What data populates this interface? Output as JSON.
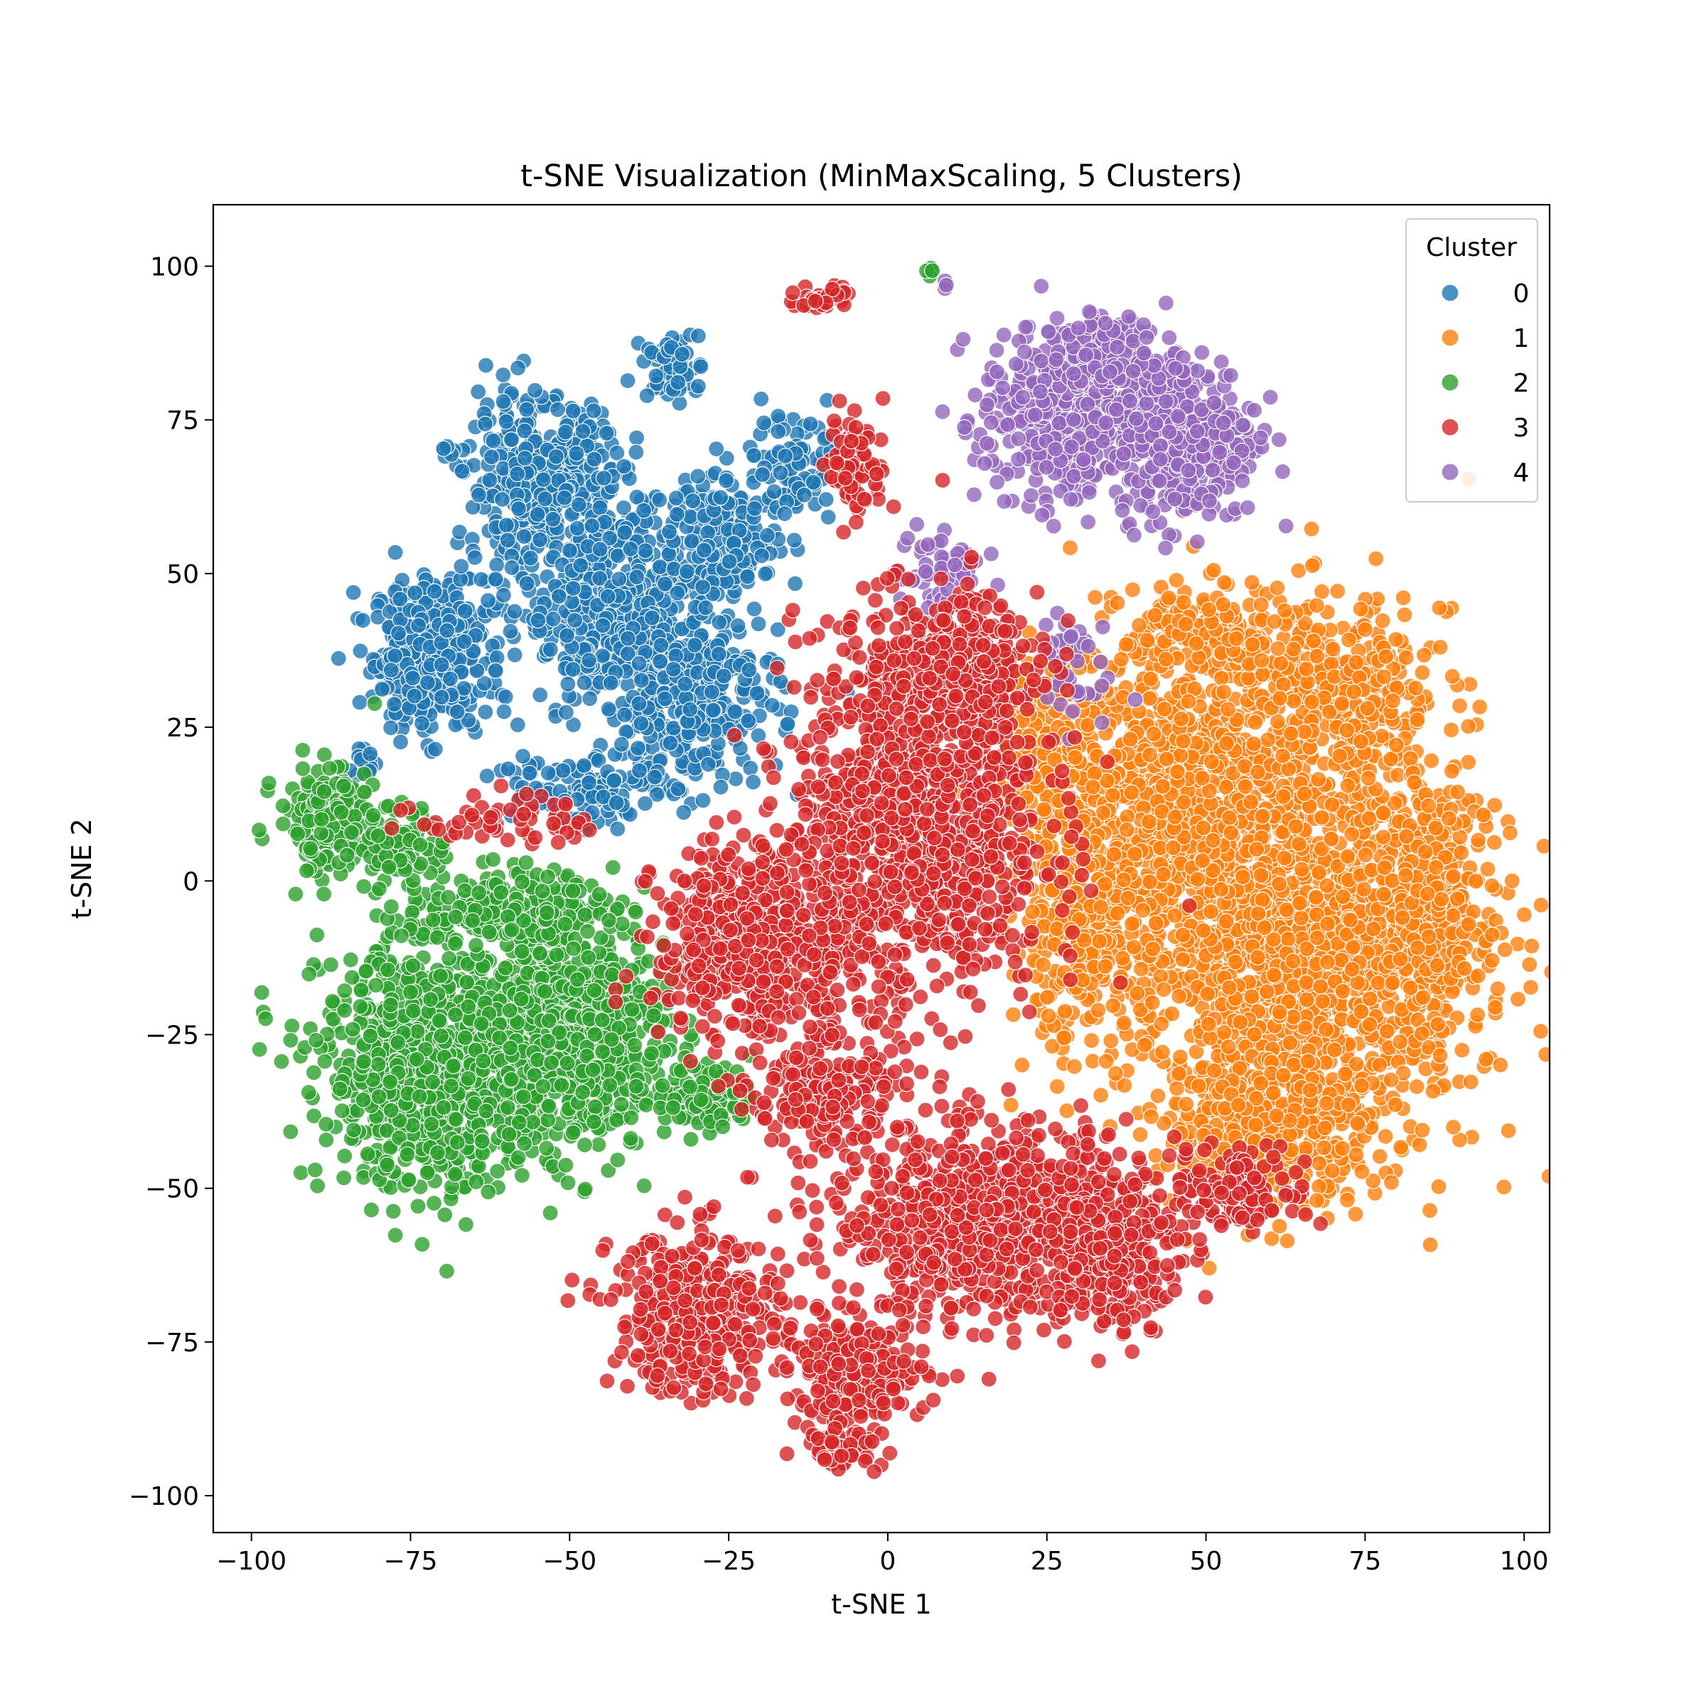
{
  "chart_data": {
    "type": "scatter",
    "title": "t-SNE Visualization (MinMaxScaling, 5 Clusters)",
    "xlabel": "t-SNE 1",
    "ylabel": "t-SNE 2",
    "xlim": [
      -106,
      104
    ],
    "ylim": [
      -106,
      110
    ],
    "xticks": [
      -100,
      -75,
      -50,
      -25,
      0,
      25,
      50,
      75,
      100
    ],
    "yticks": [
      -100,
      -75,
      -50,
      -25,
      0,
      25,
      50,
      75,
      100
    ],
    "xtick_labels": [
      "−100",
      "−75",
      "−50",
      "−25",
      "0",
      "25",
      "50",
      "75",
      "100"
    ],
    "ytick_labels": [
      "−100",
      "−75",
      "−50",
      "−25",
      "0",
      "25",
      "50",
      "75",
      "100"
    ],
    "grid": false,
    "legend": {
      "title": "Cluster",
      "placement": "top-right"
    },
    "marker_opacity": 0.8,
    "series": [
      {
        "name": "0",
        "color": "#1f77b4",
        "regions": [
          {
            "cx": -72,
            "cy": 37,
            "rx": 8,
            "ry": 11,
            "n": 420
          },
          {
            "cx": -55,
            "cy": 65,
            "rx": 10,
            "ry": 12,
            "n": 380
          },
          {
            "cx": -42,
            "cy": 45,
            "rx": 14,
            "ry": 18,
            "n": 520
          },
          {
            "cx": -30,
            "cy": 30,
            "rx": 12,
            "ry": 14,
            "n": 300
          },
          {
            "cx": -25,
            "cy": 55,
            "rx": 8,
            "ry": 8,
            "n": 150
          },
          {
            "cx": -34,
            "cy": 84,
            "rx": 4,
            "ry": 5,
            "n": 60
          },
          {
            "cx": -15,
            "cy": 68,
            "rx": 8,
            "ry": 8,
            "n": 90
          },
          {
            "cx": -50,
            "cy": 15,
            "rx": 12,
            "ry": 6,
            "n": 120
          },
          {
            "cx": -82,
            "cy": 19,
            "rx": 3,
            "ry": 2,
            "n": 15
          },
          {
            "cx": -70,
            "cy": 70,
            "rx": 2,
            "ry": 1,
            "n": 6
          }
        ]
      },
      {
        "name": "1",
        "color": "#ff7f0e",
        "regions": [
          {
            "cx": 65,
            "cy": -10,
            "rx": 25,
            "ry": 32,
            "n": 1700
          },
          {
            "cx": 45,
            "cy": 15,
            "rx": 15,
            "ry": 20,
            "n": 600
          },
          {
            "cx": 70,
            "cy": 30,
            "rx": 15,
            "ry": 15,
            "n": 350
          },
          {
            "cx": 85,
            "cy": -5,
            "rx": 8,
            "ry": 15,
            "n": 300
          },
          {
            "cx": 50,
            "cy": 40,
            "rx": 12,
            "ry": 7,
            "n": 200
          },
          {
            "cx": 25,
            "cy": 20,
            "rx": 10,
            "ry": 15,
            "n": 250
          },
          {
            "cx": 60,
            "cy": -40,
            "rx": 14,
            "ry": 10,
            "n": 300
          },
          {
            "cx": 30,
            "cy": -10,
            "rx": 10,
            "ry": 15,
            "n": 250
          },
          {
            "cx": 88,
            "cy": 44,
            "rx": 1,
            "ry": 1,
            "n": 3
          }
        ]
      },
      {
        "name": "2",
        "color": "#2ca02c",
        "regions": [
          {
            "cx": -70,
            "cy": -30,
            "rx": 17,
            "ry": 18,
            "n": 1000
          },
          {
            "cx": -48,
            "cy": -25,
            "rx": 12,
            "ry": 16,
            "n": 600
          },
          {
            "cx": -88,
            "cy": 10,
            "rx": 7,
            "ry": 8,
            "n": 180
          },
          {
            "cx": -60,
            "cy": -5,
            "rx": 15,
            "ry": 6,
            "n": 200
          },
          {
            "cx": -28,
            "cy": -35,
            "rx": 6,
            "ry": 5,
            "n": 120
          },
          {
            "cx": -76,
            "cy": 6,
            "rx": 6,
            "ry": 5,
            "n": 80
          },
          {
            "cx": 7,
            "cy": 99,
            "rx": 1,
            "ry": 1,
            "n": 5
          }
        ]
      },
      {
        "name": "3",
        "color": "#d62728",
        "regions": [
          {
            "cx": 5,
            "cy": 10,
            "rx": 18,
            "ry": 28,
            "n": 1100
          },
          {
            "cx": -20,
            "cy": -10,
            "rx": 15,
            "ry": 15,
            "n": 600
          },
          {
            "cx": 15,
            "cy": -55,
            "rx": 22,
            "ry": 14,
            "n": 800
          },
          {
            "cx": -30,
            "cy": -70,
            "rx": 12,
            "ry": 12,
            "n": 400
          },
          {
            "cx": -5,
            "cy": -80,
            "rx": 10,
            "ry": 8,
            "n": 250
          },
          {
            "cx": 35,
            "cy": -60,
            "rx": 10,
            "ry": 12,
            "n": 300
          },
          {
            "cx": -10,
            "cy": -35,
            "rx": 10,
            "ry": 8,
            "n": 200
          },
          {
            "cx": -7,
            "cy": -92,
            "rx": 6,
            "ry": 3,
            "n": 60
          },
          {
            "cx": 10,
            "cy": 35,
            "rx": 12,
            "ry": 10,
            "n": 300
          },
          {
            "cx": -5,
            "cy": 68,
            "rx": 4,
            "ry": 8,
            "n": 80
          },
          {
            "cx": -10,
            "cy": 95,
            "rx": 4,
            "ry": 2,
            "n": 40
          },
          {
            "cx": -60,
            "cy": 10,
            "rx": 12,
            "ry": 4,
            "n": 60
          },
          {
            "cx": 55,
            "cy": -50,
            "rx": 10,
            "ry": 6,
            "n": 120
          }
        ]
      },
      {
        "name": "4",
        "color": "#9467bd",
        "regions": [
          {
            "cx": 28,
            "cy": 75,
            "rx": 12,
            "ry": 13,
            "n": 400
          },
          {
            "cx": 47,
            "cy": 72,
            "rx": 10,
            "ry": 12,
            "n": 350
          },
          {
            "cx": 35,
            "cy": 85,
            "rx": 10,
            "ry": 6,
            "n": 150
          },
          {
            "cx": 8,
            "cy": 50,
            "rx": 6,
            "ry": 8,
            "n": 60
          },
          {
            "cx": 28,
            "cy": 35,
            "rx": 6,
            "ry": 10,
            "n": 40
          },
          {
            "cx": 9,
            "cy": 97,
            "rx": 1,
            "ry": 1,
            "n": 3
          }
        ]
      }
    ]
  }
}
